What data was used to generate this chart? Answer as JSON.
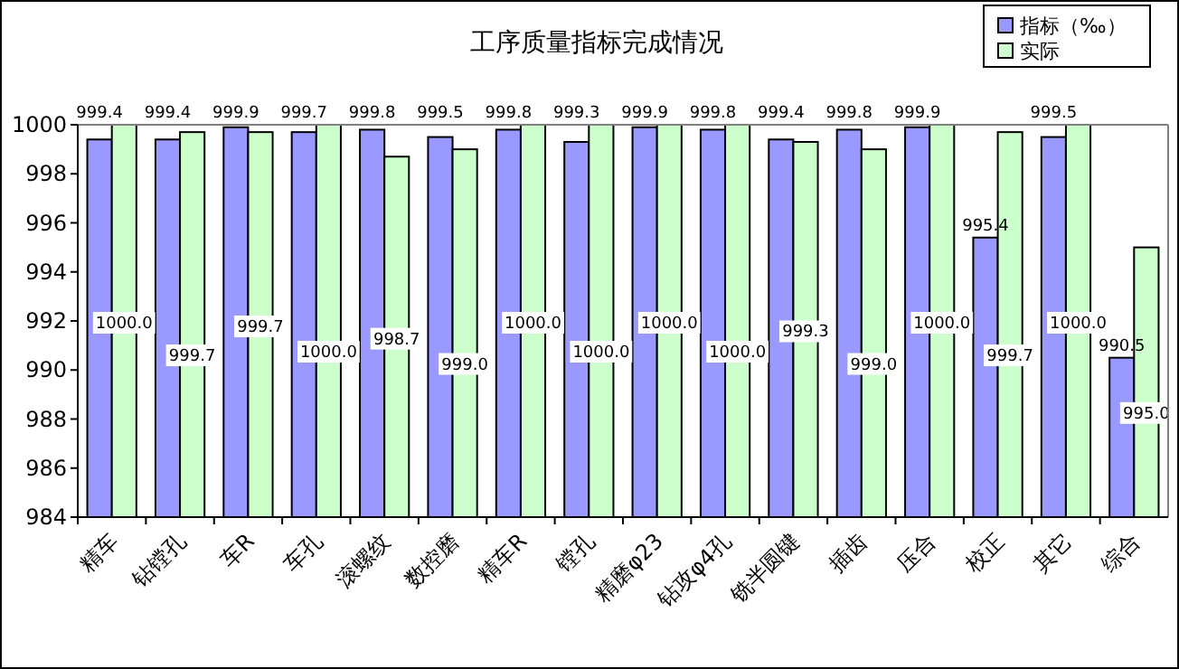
{
  "chart_data": {
    "type": "bar",
    "title": "工序质量指标完成情况",
    "categories": [
      "精车",
      "钻镗孔",
      "车R",
      "车孔",
      "滚螺纹",
      "数控磨",
      "精车R",
      "镗孔",
      "精磨φ23",
      "钻攻φ4孔",
      "铣半圆键",
      "插齿",
      "压合",
      "校正",
      "其它",
      "综合"
    ],
    "series": [
      {
        "name": "指标（‰）",
        "color": "#9999ff",
        "values": [
          999.4,
          999.4,
          999.9,
          999.7,
          999.8,
          999.5,
          999.8,
          999.3,
          999.9,
          999.8,
          999.4,
          999.8,
          999.9,
          995.4,
          999.5,
          990.5
        ],
        "value_labels": [
          "999.4",
          "999.4",
          "999.9",
          "999.7",
          "999.8",
          "999.5",
          "999.8",
          "999.3",
          "999.9",
          "999.8",
          "999.4",
          "999.8",
          "999.9",
          "995.4",
          "999.5",
          "990.5"
        ]
      },
      {
        "name": "实际",
        "color": "#ccffcc",
        "values": [
          1000.0,
          999.7,
          999.7,
          1000.0,
          998.7,
          999.0,
          1000.0,
          1000.0,
          1000.0,
          1000.0,
          999.3,
          999.0,
          1000.0,
          999.7,
          1000.0,
          995.0
        ],
        "value_labels": [
          "1000.0",
          "999.7",
          "999.7",
          "1000.0",
          "998.7",
          "999.0",
          "1000.0",
          "1000.0",
          "1000.0",
          "1000.0",
          "999.3",
          "999.0",
          "1000.0",
          "999.7",
          "1000.0",
          "995.0"
        ]
      }
    ],
    "ylim": [
      984,
      1000
    ],
    "yticks": [
      984,
      986,
      988,
      990,
      992,
      994,
      996,
      998,
      1000
    ],
    "legend": "top right"
  }
}
